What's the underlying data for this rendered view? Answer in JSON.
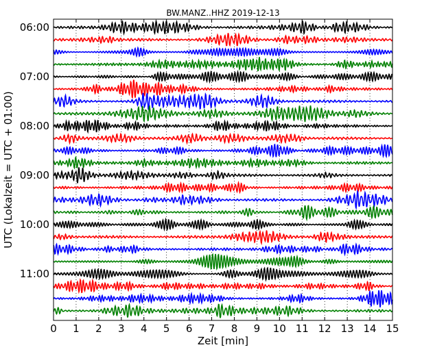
{
  "chart_data": {
    "type": "line",
    "title": "BW.MANZ..HHZ 2019-12-13",
    "xlabel": "Zeit  [min]",
    "ylabel": "UTC (Lokalzeit = UTC + 01:00)",
    "xlim": [
      0,
      15
    ],
    "x_ticks": [
      "0",
      "1",
      "2",
      "3",
      "4",
      "5",
      "6",
      "7",
      "8",
      "9",
      "10",
      "11",
      "12",
      "13",
      "14",
      "15"
    ],
    "y_ticks": [
      "06:00",
      "07:00",
      "08:00",
      "09:00",
      "10:00",
      "11:00"
    ],
    "trace_start": "06:00",
    "trace_interval_minutes": 15,
    "trace_count": 24,
    "trace_colors": [
      "#000000",
      "#ff0000",
      "#0000ff",
      "#008000"
    ],
    "grid": "vertical-dotted",
    "series_note": "seismic waveform traces (helicorder)"
  }
}
